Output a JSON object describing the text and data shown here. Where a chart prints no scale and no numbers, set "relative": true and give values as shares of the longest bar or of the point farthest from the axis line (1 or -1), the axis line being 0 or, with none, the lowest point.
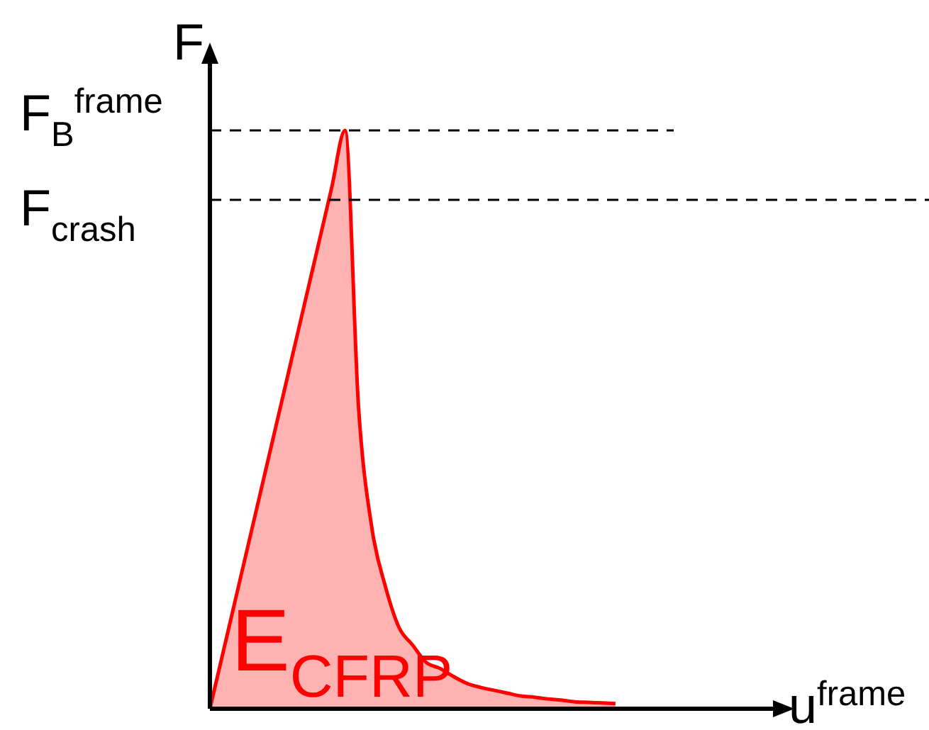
{
  "chart_data": {
    "type": "area",
    "relative": true,
    "xlabel": "u$^{frame}$",
    "ylabel": "F",
    "categories": [
      null,
      null,
      null,
      null,
      null,
      null,
      null,
      null,
      null,
      null,
      null,
      null,
      null,
      null,
      null,
      null,
      null,
      null,
      null,
      null,
      null,
      null,
      null,
      null,
      null,
      null,
      null,
      null,
      null,
      null,
      null,
      null,
      null,
      null,
      null,
      null,
      null,
      null,
      null,
      null,
      null,
      null
    ],
    "series": [
      {
        "color": "#ff0000",
        "values": [
          0,
          0.1,
          0.2,
          0.3,
          0.4,
          0.5,
          0.6,
          0.7,
          0.8,
          0.9,
          1,
          0.52,
          0.31,
          0.21,
          0.14,
          0.11,
          0.08,
          0.07,
          0.056,
          0.044,
          0.037,
          0.032,
          0.027,
          0.022,
          0.02,
          0.017,
          0.015,
          0.012,
          0.011,
          0.01,
          0.009,
          null,
          null,
          null,
          null,
          null,
          null,
          null,
          null,
          null,
          null,
          null
        ]
      }
    ],
    "ref_lines": [
      {
        "axis": "y",
        "value": 1,
        "label": "F$_{B}$$^{frame}$",
        "color": "#000000",
        "line_style": "dashed"
      },
      {
        "axis": "y",
        "value": 0.88,
        "label": "F$_{crash}$",
        "color": "#000000",
        "line_style": "dashed"
      }
    ],
    "annotations": [
      "E$_{CFRP}$"
    ]
  }
}
